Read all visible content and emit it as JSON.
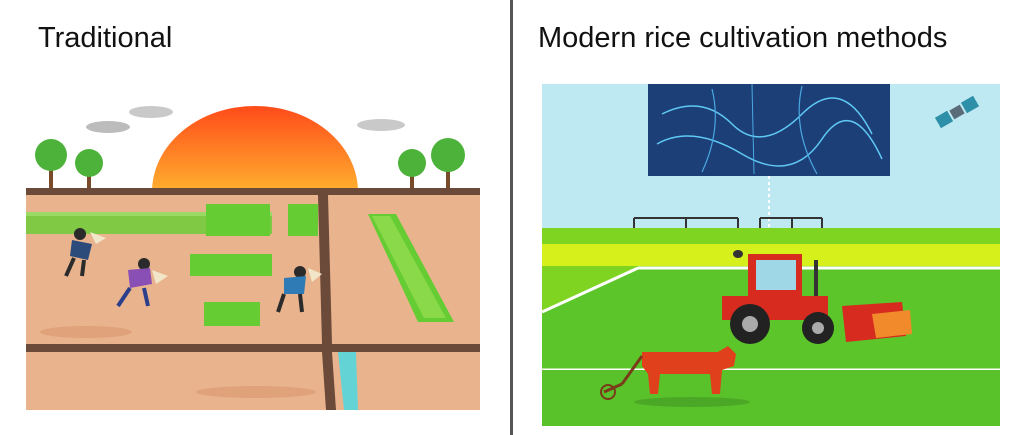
{
  "left_panel": {
    "title": "Traditional"
  },
  "right_panel": {
    "title": "Modern rice cultivation methods"
  },
  "colors": {
    "sun": "#ff5a1f",
    "earth": "#e9b48d",
    "path": "#6b4a3a",
    "rice": "#66cc33",
    "sky": "#bfe9f2",
    "field": "#7fd321",
    "tractor": "#d62b1e",
    "ox": "#e0401b",
    "panel": "#1c3f78"
  },
  "icons": [
    "sun-icon",
    "cloud-icon",
    "tree-icon",
    "farmer-icon",
    "satellite-icon",
    "sprinkler-icon",
    "drone-icon",
    "tractor-icon",
    "ox-plow-icon"
  ]
}
